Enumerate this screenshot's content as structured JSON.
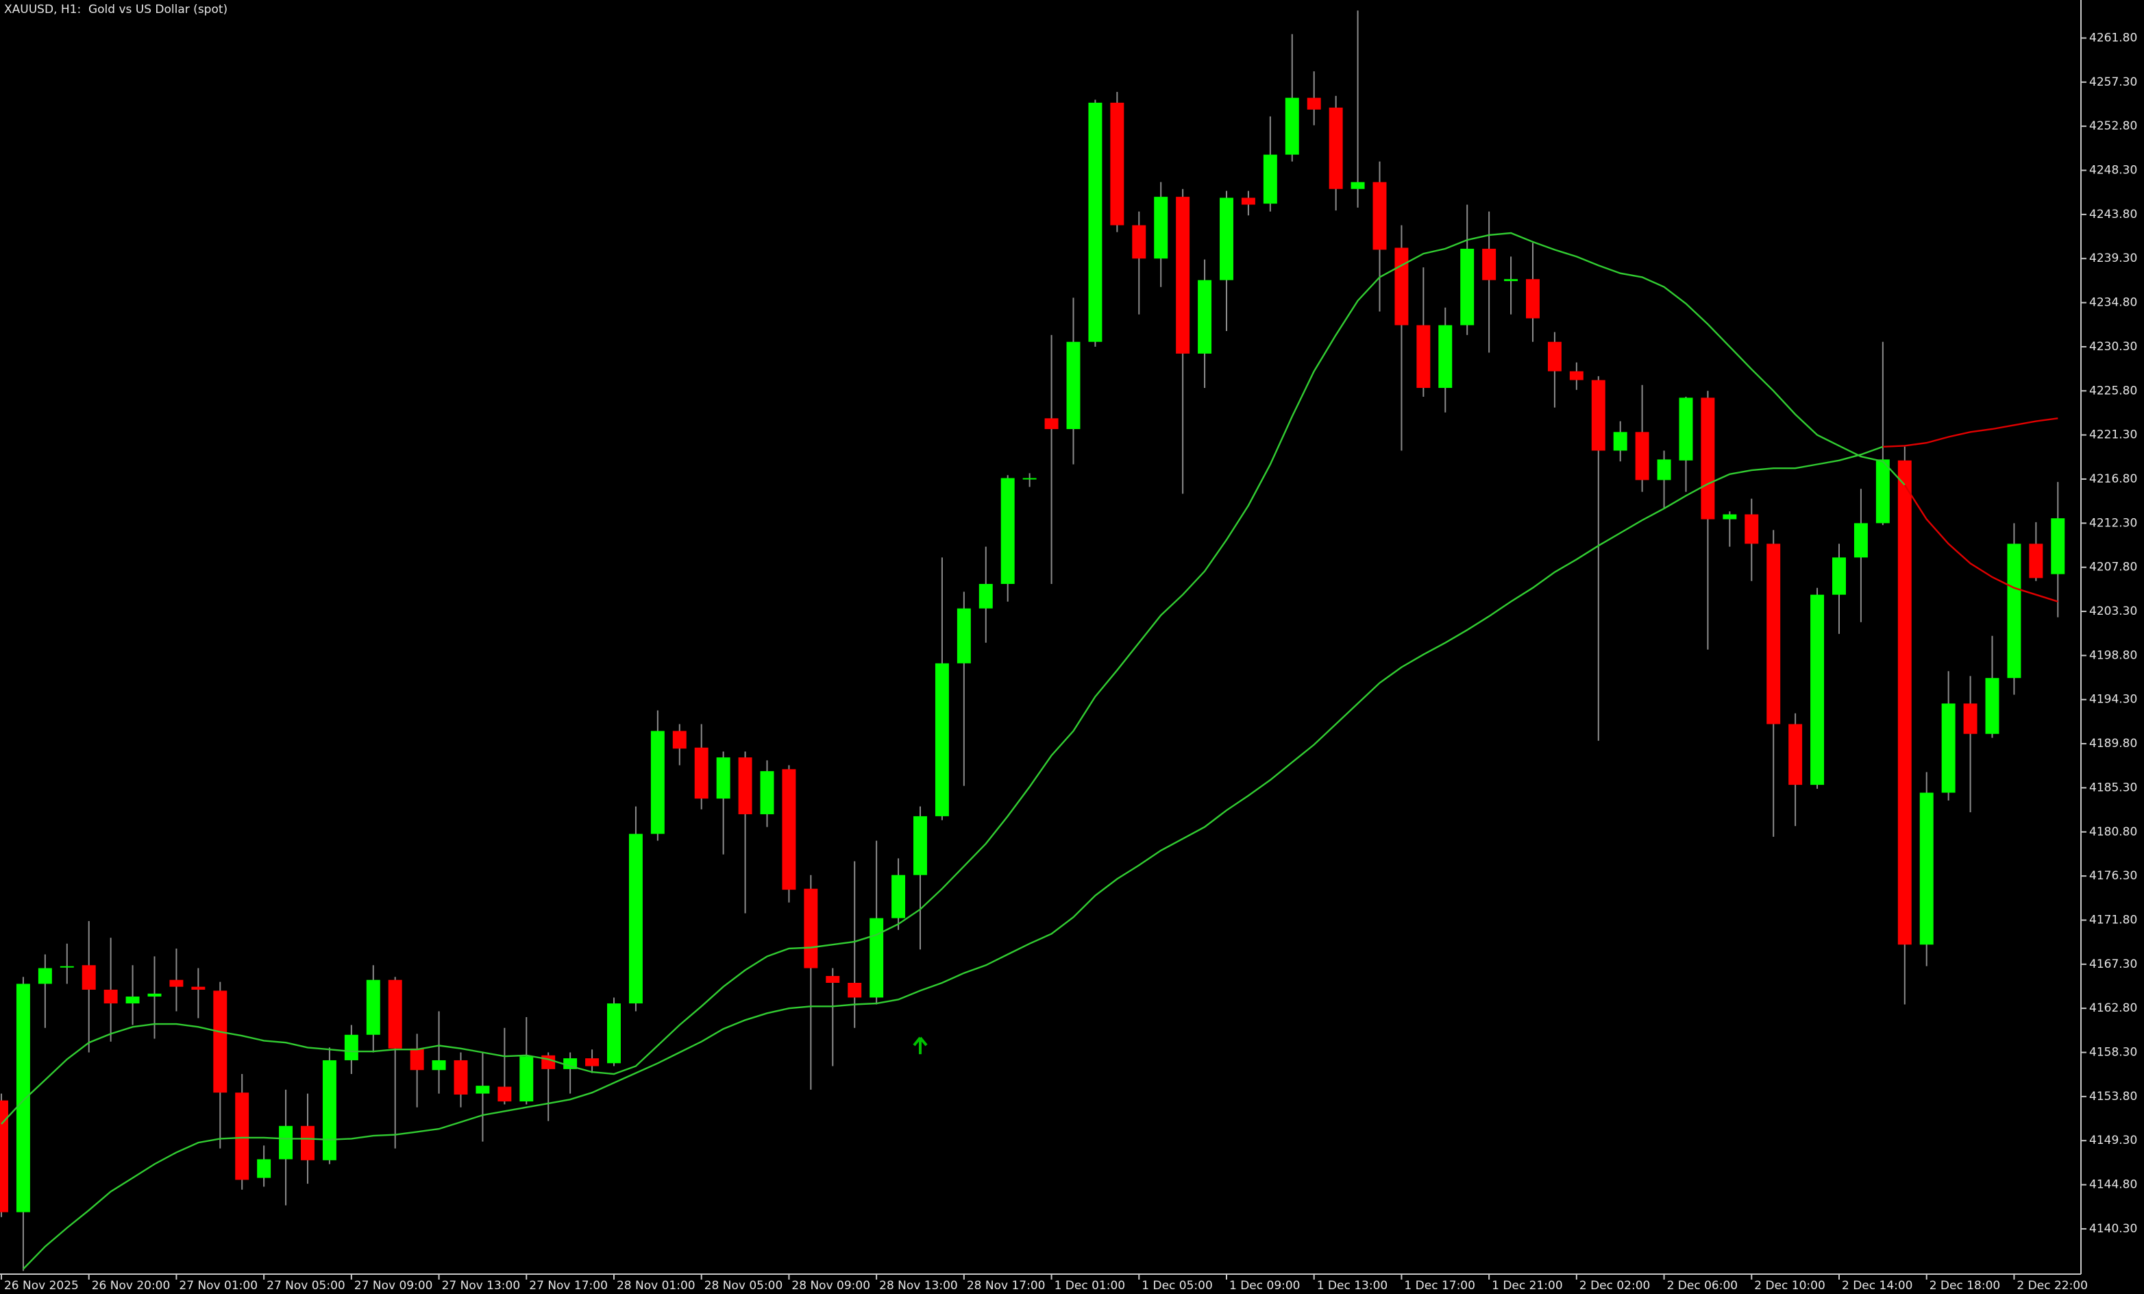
{
  "chart_data": {
    "type": "candlestick",
    "title": "XAUUSD, H1:  Gold vs US Dollar (spot)",
    "up_color": "#00ff00",
    "down_color": "#ff0000",
    "wick_color": "#8c8c8c",
    "categories": [
      "26 Nov 2025",
      null,
      null,
      null,
      "26 Nov 20:00",
      null,
      null,
      null,
      "27 Nov 01:00",
      null,
      null,
      null,
      "27 Nov 05:00",
      null,
      null,
      null,
      "27 Nov 09:00",
      null,
      null,
      null,
      "27 Nov 13:00",
      null,
      null,
      null,
      "27 Nov 17:00",
      null,
      null,
      null,
      "28 Nov 01:00",
      null,
      null,
      null,
      "28 Nov 05:00",
      null,
      null,
      null,
      "28 Nov 09:00",
      null,
      null,
      null,
      "28 Nov 13:00",
      null,
      null,
      null,
      "28 Nov 17:00",
      null,
      null,
      null,
      "1 Dec 01:00",
      null,
      null,
      null,
      "1 Dec 05:00",
      null,
      null,
      null,
      "1 Dec 09:00",
      null,
      null,
      null,
      "1 Dec 13:00",
      null,
      null,
      null,
      "1 Dec 17:00",
      null,
      null,
      null,
      "1 Dec 21:00",
      null,
      null,
      null,
      "2 Dec 02:00",
      null,
      null,
      null,
      "2 Dec 06:00",
      null,
      null,
      null,
      "2 Dec 10:00",
      null,
      null,
      null,
      "2 Dec 14:00",
      null,
      null,
      null,
      "2 Dec 18:00",
      null,
      null,
      null,
      "2 Dec 22:00",
      null,
      null
    ],
    "open": [
      4153.4,
      4142.0,
      4165.3,
      4167.0,
      4167.2,
      4164.7,
      4163.3,
      4164.0,
      4165.7,
      4165.0,
      4164.6,
      4154.2,
      4145.5,
      4147.4,
      4150.8,
      4147.3,
      4157.5,
      4160.1,
      4165.7,
      4158.7,
      4156.5,
      4157.5,
      4154.1,
      4154.8,
      4153.3,
      4158.0,
      4156.6,
      4157.7,
      4157.2,
      4163.3,
      4180.6,
      4191.1,
      4189.4,
      4184.2,
      4188.4,
      4182.6,
      4187.2,
      4175.0,
      4166.1,
      4165.4,
      4163.9,
      4172.0,
      4176.4,
      4182.4,
      4198.0,
      4203.6,
      4206.1,
      4216.9,
      4223.0,
      4221.9,
      4230.8,
      4255.2,
      4242.7,
      4239.3,
      4245.6,
      4229.6,
      4237.1,
      4245.5,
      4244.9,
      4249.9,
      4255.7,
      4254.7,
      4246.4,
      4247.1,
      4240.4,
      4232.5,
      4226.1,
      4232.5,
      4240.3,
      4237.0,
      4237.2,
      4230.8,
      4227.8,
      4226.9,
      4219.7,
      4221.6,
      4216.7,
      4218.7,
      4225.1,
      4212.7,
      4213.2,
      4210.2,
      4191.8,
      4185.6,
      4205.0,
      4208.8,
      4212.3,
      4218.7,
      4169.3,
      4184.8,
      4193.9,
      4190.8,
      4196.5,
      4210.2,
      4207.1
    ],
    "high": [
      4154.1,
      4166.0,
      4168.3,
      4169.4,
      4171.7,
      4170.0,
      4167.2,
      4168.1,
      4168.9,
      4166.9,
      4165.5,
      4156.1,
      4148.8,
      4154.5,
      4154.1,
      4158.8,
      4161.1,
      4167.2,
      4166.0,
      4160.2,
      4162.5,
      4158.3,
      4158.3,
      4160.8,
      4161.9,
      4158.3,
      4158.3,
      4158.6,
      4163.9,
      4183.4,
      4193.2,
      4191.8,
      4191.8,
      4189.0,
      4189.0,
      4188.1,
      4187.6,
      4176.4,
      4166.9,
      4177.8,
      4179.9,
      4178.1,
      4183.4,
      4208.8,
      4205.3,
      4209.9,
      4217.2,
      4217.4,
      4231.5,
      4235.3,
      4255.5,
      4256.3,
      4244.1,
      4247.1,
      4246.4,
      4239.2,
      4246.2,
      4246.2,
      4253.8,
      4262.2,
      4258.4,
      4255.9,
      4264.6,
      4249.2,
      4242.7,
      4238.4,
      4234.3,
      4244.8,
      4244.1,
      4239.5,
      4240.9,
      4231.8,
      4228.7,
      4227.3,
      4222.7,
      4226.4,
      4219.7,
      4225.2,
      4225.8,
      4213.5,
      4214.8,
      4211.6,
      4192.9,
      4205.7,
      4210.2,
      4215.8,
      4230.8,
      4220.1,
      4186.9,
      4197.2,
      4196.7,
      4200.8,
      4212.3,
      4212.4,
      4216.5
    ],
    "low": [
      4141.5,
      4136.0,
      4160.8,
      4165.3,
      4158.3,
      4159.4,
      4161.1,
      4159.7,
      4162.5,
      4161.8,
      4148.5,
      4144.3,
      4144.6,
      4142.7,
      4144.9,
      4146.9,
      4156.1,
      4158.3,
      4148.5,
      4152.7,
      4154.1,
      4152.7,
      4149.2,
      4153.0,
      4153.0,
      4151.3,
      4154.1,
      4156.2,
      4156.9,
      4162.5,
      4179.9,
      4187.6,
      4183.1,
      4178.5,
      4172.5,
      4181.3,
      4173.6,
      4154.5,
      4156.9,
      4160.8,
      4163.2,
      4170.8,
      4168.8,
      4182.0,
      4185.5,
      4200.1,
      4204.3,
      4216.0,
      4206.1,
      4218.3,
      4230.3,
      4242.0,
      4233.6,
      4236.4,
      4215.3,
      4226.1,
      4231.9,
      4243.7,
      4244.1,
      4249.2,
      4252.9,
      4244.2,
      4244.5,
      4233.9,
      4219.7,
      4225.2,
      4223.6,
      4231.5,
      4229.7,
      4233.6,
      4230.8,
      4224.1,
      4225.9,
      4190.1,
      4218.6,
      4215.5,
      4213.8,
      4215.5,
      4199.4,
      4209.9,
      4206.4,
      4180.3,
      4181.4,
      4185.2,
      4201.0,
      4202.2,
      4212.1,
      4163.2,
      4167.1,
      4184.0,
      4182.8,
      4190.4,
      4194.8,
      4206.4,
      4202.7
    ],
    "close": [
      4142.0,
      4165.3,
      4166.9,
      4167.1,
      4164.7,
      4163.3,
      4164.0,
      4164.3,
      4165.0,
      4164.7,
      4154.2,
      4145.3,
      4147.4,
      4150.8,
      4147.3,
      4157.5,
      4160.1,
      4165.7,
      4158.7,
      4156.5,
      4157.5,
      4154.0,
      4154.9,
      4153.3,
      4157.9,
      4156.6,
      4157.7,
      4156.9,
      4163.3,
      4180.6,
      4191.1,
      4189.3,
      4184.2,
      4188.4,
      4182.6,
      4187.0,
      4174.9,
      4166.9,
      4165.4,
      4163.9,
      4172.0,
      4176.4,
      4182.4,
      4198.0,
      4203.6,
      4206.1,
      4216.9,
      4216.9,
      4221.9,
      4230.8,
      4255.2,
      4242.7,
      4239.3,
      4245.6,
      4229.6,
      4237.1,
      4245.5,
      4244.8,
      4249.9,
      4255.7,
      4254.5,
      4246.4,
      4247.1,
      4240.2,
      4232.5,
      4226.1,
      4232.5,
      4240.3,
      4237.1,
      4237.2,
      4233.2,
      4227.8,
      4226.9,
      4219.7,
      4221.6,
      4216.7,
      4218.8,
      4225.1,
      4212.7,
      4213.2,
      4210.2,
      4191.8,
      4185.6,
      4205.0,
      4208.8,
      4212.3,
      4218.8,
      4169.3,
      4184.8,
      4193.9,
      4190.8,
      4196.5,
      4210.2,
      4206.7,
      4212.8
    ],
    "overlays": [
      {
        "color": "#32cd32",
        "values": [
          4151.0,
          4153.4,
          4155.5,
          4157.6,
          4159.3,
          4160.2,
          4160.9,
          4161.2,
          4161.2,
          4160.9,
          4160.4,
          4160.0,
          4159.5,
          4159.3,
          4158.8,
          4158.6,
          4158.4,
          4158.4,
          4158.6,
          4158.6,
          4159.0,
          4158.7,
          4158.3,
          4157.9,
          4158.0,
          4157.6,
          4156.9,
          4156.3,
          4156.1,
          4156.9,
          4159.0,
          4161.1,
          4163.0,
          4165.0,
          4166.7,
          4168.1,
          4168.9,
          4169.0,
          4169.3,
          4169.6,
          4170.3,
          4171.4,
          4172.9,
          4175.0,
          4177.3,
          4179.6,
          4182.4,
          4185.4,
          4188.6,
          4191.1,
          4194.6,
          4197.3,
          4200.1,
          4202.9,
          4205.0,
          4207.4,
          4210.6,
          4214.1,
          4218.3,
          4223.2,
          4227.8,
          4231.5,
          4235.0,
          4237.4,
          4238.6,
          4239.8,
          4240.3,
          4241.2,
          4241.7,
          4241.9,
          4241.0,
          4240.2,
          4239.5,
          4238.6,
          4237.8,
          4237.4,
          4236.4,
          4234.7,
          4232.6,
          4230.3,
          4228.0,
          4225.8,
          4223.4,
          4221.3,
          4220.2,
          4219.1,
          4218.6,
          4216.2,
          null,
          null,
          null,
          null,
          null,
          null,
          null
        ]
      },
      {
        "color": "#e00000",
        "values": [
          null,
          null,
          null,
          null,
          null,
          null,
          null,
          null,
          null,
          null,
          null,
          null,
          null,
          null,
          null,
          null,
          null,
          null,
          null,
          null,
          null,
          null,
          null,
          null,
          null,
          null,
          null,
          null,
          null,
          null,
          null,
          null,
          null,
          null,
          null,
          null,
          null,
          null,
          null,
          null,
          null,
          null,
          null,
          null,
          null,
          null,
          null,
          null,
          null,
          null,
          null,
          null,
          null,
          null,
          null,
          null,
          null,
          null,
          null,
          null,
          null,
          null,
          null,
          null,
          null,
          null,
          null,
          null,
          null,
          null,
          null,
          null,
          null,
          null,
          null,
          null,
          null,
          null,
          null,
          null,
          null,
          null,
          null,
          null,
          null,
          null,
          null,
          4216.2,
          4212.7,
          4210.2,
          4208.2,
          4206.8,
          4205.7,
          4205.0,
          4204.3
        ]
      },
      {
        "color": "#32cd32",
        "values": [
          null,
          4136.2,
          4138.5,
          4140.4,
          4142.2,
          4144.1,
          4145.5,
          4146.9,
          4148.1,
          4149.1,
          4149.5,
          4149.6,
          4149.6,
          4149.5,
          4149.5,
          4149.4,
          4149.5,
          4149.8,
          4149.9,
          4150.2,
          4150.5,
          4151.2,
          4151.9,
          4152.3,
          4152.7,
          4153.1,
          4153.5,
          4154.2,
          4155.2,
          4156.2,
          4157.2,
          4158.3,
          4159.4,
          4160.7,
          4161.6,
          4162.3,
          4162.8,
          4163.0,
          4163.0,
          4163.2,
          4163.3,
          4163.7,
          4164.6,
          4165.4,
          4166.4,
          4167.2,
          4168.3,
          4169.4,
          4170.4,
          4172.1,
          4174.3,
          4176.0,
          4177.4,
          4178.9,
          4180.1,
          4181.3,
          4183.0,
          4184.5,
          4186.1,
          4187.9,
          4189.7,
          4191.8,
          4193.9,
          4196.0,
          4197.6,
          4198.9,
          4200.1,
          4201.4,
          4202.8,
          4204.3,
          4205.7,
          4207.3,
          4208.6,
          4210.0,
          4211.3,
          4212.6,
          4213.8,
          4215.1,
          4216.3,
          4217.3,
          4217.7,
          4217.9,
          4217.9,
          4218.3,
          4218.7,
          4219.3,
          4220.1,
          null,
          null,
          null,
          null,
          null,
          null,
          null,
          null
        ]
      },
      {
        "color": "#e00000",
        "values": [
          null,
          null,
          null,
          null,
          null,
          null,
          null,
          null,
          null,
          null,
          null,
          null,
          null,
          null,
          null,
          null,
          null,
          null,
          null,
          null,
          null,
          null,
          null,
          null,
          null,
          null,
          null,
          null,
          null,
          null,
          null,
          null,
          null,
          null,
          null,
          null,
          null,
          null,
          null,
          null,
          null,
          null,
          null,
          null,
          null,
          null,
          null,
          null,
          null,
          null,
          null,
          null,
          null,
          null,
          null,
          null,
          null,
          null,
          null,
          null,
          null,
          null,
          null,
          null,
          null,
          null,
          null,
          null,
          null,
          null,
          null,
          null,
          null,
          null,
          null,
          null,
          null,
          null,
          null,
          null,
          null,
          null,
          null,
          null,
          null,
          null,
          4220.1,
          4220.2,
          4220.5,
          4221.1,
          4221.6,
          4221.9,
          4222.3,
          4222.7,
          4223.0
        ]
      }
    ],
    "arrows": {
      "color": "#00c000",
      "values": [
        null,
        null,
        null,
        null,
        null,
        null,
        null,
        null,
        null,
        null,
        null,
        null,
        null,
        null,
        null,
        null,
        null,
        null,
        null,
        null,
        null,
        null,
        null,
        null,
        null,
        null,
        null,
        null,
        null,
        null,
        null,
        null,
        null,
        null,
        null,
        null,
        null,
        null,
        null,
        null,
        null,
        null,
        4159.8,
        null,
        null,
        null,
        null,
        null,
        null,
        null,
        null,
        null,
        null,
        null,
        null,
        null,
        null,
        null,
        null,
        null,
        null,
        null,
        null,
        null,
        null,
        null,
        null,
        null,
        null,
        null,
        null,
        null,
        null,
        null,
        null,
        null,
        null,
        null,
        null,
        null,
        null,
        null,
        null,
        null,
        null,
        null,
        null,
        null,
        null,
        null,
        null,
        null,
        null,
        null,
        null
      ]
    },
    "ylim": [
      4135.9,
      4265.4
    ],
    "yticks": [
      {
        "value": 4261.8,
        "label": "4261.80"
      },
      {
        "value": 4257.3,
        "label": "4257.30"
      },
      {
        "value": 4252.8,
        "label": "4252.80"
      },
      {
        "value": 4248.3,
        "label": "4248.30"
      },
      {
        "value": 4243.8,
        "label": "4243.80"
      },
      {
        "value": 4239.3,
        "label": "4239.30"
      },
      {
        "value": 4234.8,
        "label": "4234.80"
      },
      {
        "value": 4230.3,
        "label": "4230.30"
      },
      {
        "value": 4225.8,
        "label": "4225.80"
      },
      {
        "value": 4221.3,
        "label": "4221.30"
      },
      {
        "value": 4216.8,
        "label": "4216.80"
      },
      {
        "value": 4212.3,
        "label": "4212.30"
      },
      {
        "value": 4207.8,
        "label": "4207.80"
      },
      {
        "value": 4203.3,
        "label": "4203.30"
      },
      {
        "value": 4198.8,
        "label": "4198.80"
      },
      {
        "value": 4194.3,
        "label": "4194.30"
      },
      {
        "value": 4189.8,
        "label": "4189.80"
      },
      {
        "value": 4185.3,
        "label": "4185.30"
      },
      {
        "value": 4180.8,
        "label": "4180.80"
      },
      {
        "value": 4176.3,
        "label": "4176.30"
      },
      {
        "value": 4171.8,
        "label": "4171.80"
      },
      {
        "value": 4167.3,
        "label": "4167.30"
      },
      {
        "value": 4162.8,
        "label": "4162.80"
      },
      {
        "value": 4158.3,
        "label": "4158.30"
      },
      {
        "value": 4153.8,
        "label": "4153.80"
      },
      {
        "value": 4149.3,
        "label": "4149.30"
      },
      {
        "value": 4144.8,
        "label": "4144.80"
      },
      {
        "value": 4140.3,
        "label": "4140.30"
      }
    ]
  }
}
